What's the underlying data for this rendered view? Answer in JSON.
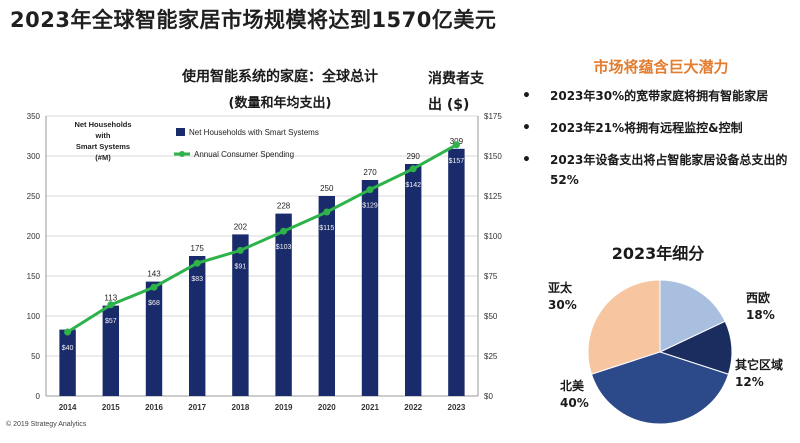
{
  "page_title": "2023年全球智能家居市场规模将达到1570亿美元",
  "chart": {
    "title": "使用智能系统的家庭：全球总计",
    "subtitle": "(数量和年均支出)",
    "right_axis_title_line1": "消费者支",
    "right_axis_title_line2": "出 ($)",
    "left_axis_title": [
      "Net Households",
      "with",
      "Smart Systems",
      "(#M)"
    ],
    "copyright": "© 2019 Strategy Analytics"
  },
  "chart_data": {
    "type": "bar",
    "categories": [
      "2014",
      "2015",
      "2016",
      "2017",
      "2018",
      "2019",
      "2020",
      "2021",
      "2022",
      "2023"
    ],
    "series": [
      {
        "name": "Net Households with Smart Systems",
        "type": "bar",
        "axis": "left",
        "values": [
          83,
          113,
          143,
          175,
          202,
          228,
          250,
          270,
          290,
          309
        ],
        "value_labels": [
          "",
          "113",
          "143",
          "175",
          "202",
          "228",
          "250",
          "270",
          "290",
          "309"
        ],
        "color": "#1a2b6b"
      },
      {
        "name": "Annual Consumer Spending",
        "type": "line",
        "axis": "right",
        "values": [
          40,
          57,
          68,
          83,
          91,
          103,
          115,
          129,
          142,
          157
        ],
        "value_labels": [
          "$40",
          "$57",
          "$68",
          "$83",
          "$91",
          "$103",
          "$115",
          "$129",
          "$142",
          "$157"
        ],
        "color": "#2db34a"
      }
    ],
    "left_axis": {
      "min": 0,
      "max": 350,
      "ticks": [
        "0",
        "50",
        "100",
        "150",
        "200",
        "250",
        "300",
        "350"
      ]
    },
    "right_axis": {
      "min": 0,
      "max": 175,
      "ticks": [
        "$0",
        "$25",
        "$50",
        "$75",
        "$100",
        "$125",
        "$150",
        "$175"
      ]
    },
    "grid": true,
    "legend_position": "top"
  },
  "side_panel": {
    "heading": "市场将蕴含巨大潜力",
    "bullets": [
      "2023年30%的宽带家庭将拥有智能家居",
      "2023年21%将拥有远程监控&控制",
      "2023年设备支出将占智能家居设备总支出的52%"
    ]
  },
  "pie": {
    "title": "2023年细分",
    "slices": [
      {
        "label": "亚太",
        "pct_text": "30%",
        "value": 30,
        "color": "#f7c59f"
      },
      {
        "label": "西欧",
        "pct_text": "18%",
        "value": 18,
        "color": "#a9bfe0"
      },
      {
        "label": "其它区域",
        "pct_text": "12%",
        "value": 12,
        "color": "#1b2d5e"
      },
      {
        "label": "北美",
        "pct_text": "40%",
        "value": 40,
        "color": "#2c4a8a"
      }
    ]
  }
}
